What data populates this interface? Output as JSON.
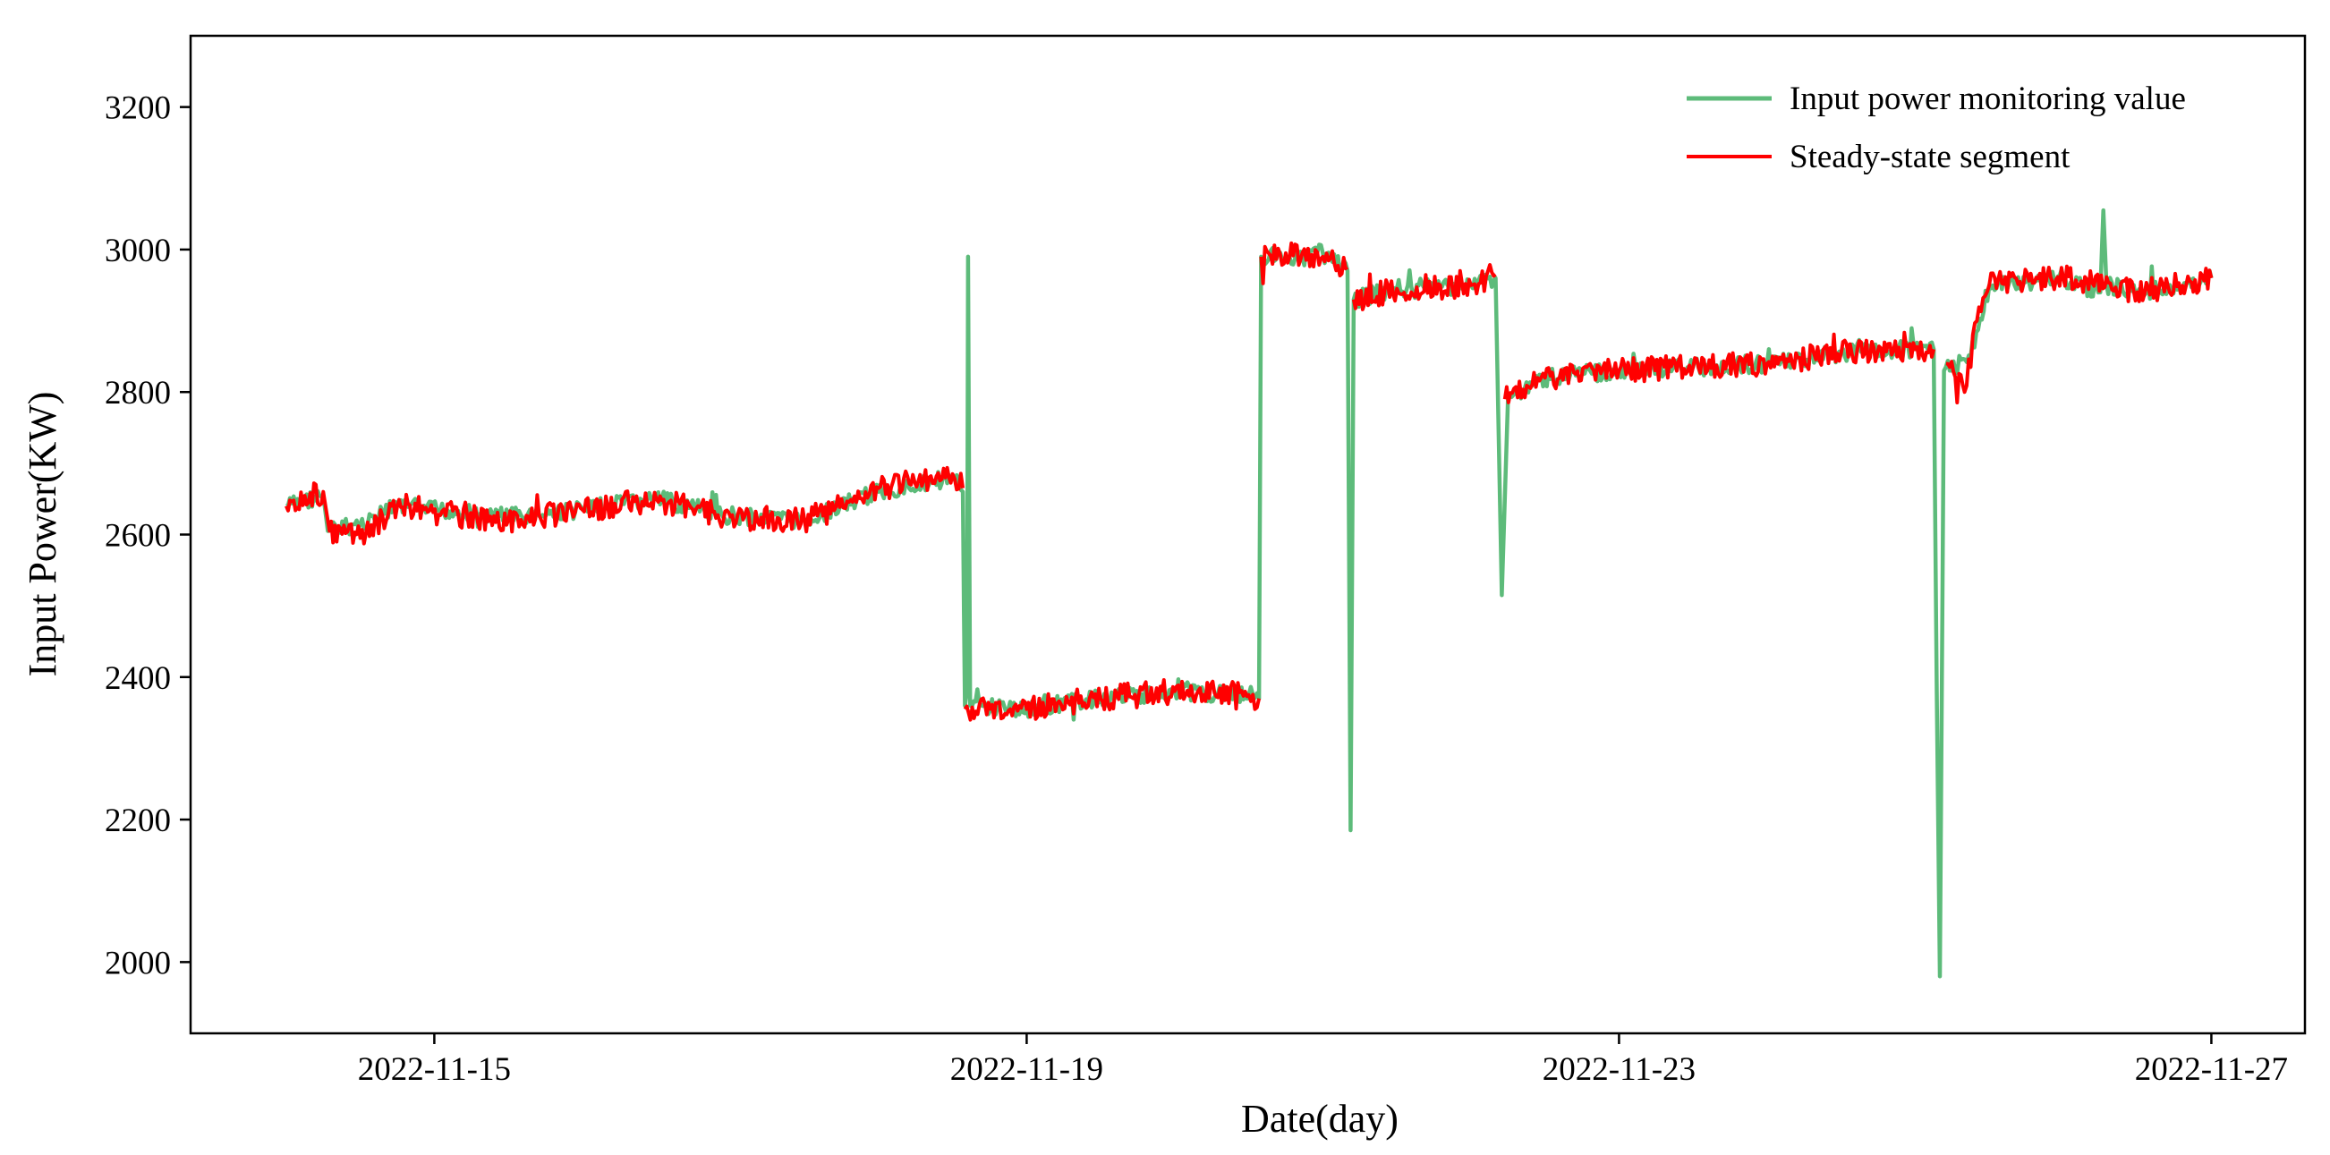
{
  "chart_data": {
    "type": "line",
    "xlabel": "Date(day)",
    "ylabel": "Input Power(KW)",
    "x_ticks": [
      "2022-11-15",
      "2022-11-19",
      "2022-11-23",
      "2022-11-27"
    ],
    "y_ticks": [
      2000,
      2200,
      2400,
      2600,
      2800,
      3000,
      3200
    ],
    "xlim": [
      "2022-11-13T08:30",
      "2022-11-27T15:10"
    ],
    "ylim": [
      1900,
      3300
    ],
    "grid": false,
    "legend": {
      "position": "top-right",
      "entries": [
        "Input power monitoring value",
        "Steady-state segment"
      ]
    },
    "series": [
      {
        "name": "Input power monitoring value",
        "color": "#5dbb7a",
        "points": [
          [
            "2022-11-14T00:00",
            2640
          ],
          [
            "2022-11-14T06:00",
            2655
          ],
          [
            "2022-11-14T06:45",
            2605
          ],
          [
            "2022-11-14T12:00",
            2615
          ],
          [
            "2022-11-14T18:00",
            2640
          ],
          [
            "2022-11-15T12:00",
            2625
          ],
          [
            "2022-11-16T00:00",
            2635
          ],
          [
            "2022-11-16T12:00",
            2650
          ],
          [
            "2022-11-17T00:00",
            2625
          ],
          [
            "2022-11-17T12:00",
            2620
          ],
          [
            "2022-11-17T18:00",
            2640
          ],
          [
            "2022-11-18T00:00",
            2660
          ],
          [
            "2022-11-18T12:00",
            2680
          ],
          [
            "2022-11-18T13:40",
            2660
          ],
          [
            "2022-11-18T13:50",
            2490
          ],
          [
            "2022-11-18T14:00",
            2360
          ],
          [
            "2022-11-18T14:20",
            2380
          ],
          [
            "2022-11-18T14:30",
            2990
          ],
          [
            "2022-11-18T14:50",
            2360
          ],
          [
            "2022-11-19T00:00",
            2355
          ],
          [
            "2022-11-19T12:00",
            2370
          ],
          [
            "2022-11-20T00:00",
            2380
          ],
          [
            "2022-11-20T12:00",
            2375
          ],
          [
            "2022-11-20T13:40",
            2370
          ],
          [
            "2022-11-20T14:00",
            2990
          ],
          [
            "2022-11-20T18:00",
            2990
          ],
          [
            "2022-11-21T00:00",
            2995
          ],
          [
            "2022-11-21T04:00",
            2970
          ],
          [
            "2022-11-21T04:30",
            2185
          ],
          [
            "2022-11-21T05:00",
            2930
          ],
          [
            "2022-11-21T12:00",
            2945
          ],
          [
            "2022-11-22T00:00",
            2950
          ],
          [
            "2022-11-22T04:00",
            2960
          ],
          [
            "2022-11-22T05:00",
            2515
          ],
          [
            "2022-11-22T06:00",
            2790
          ],
          [
            "2022-11-22T12:00",
            2820
          ],
          [
            "2022-11-23T00:00",
            2830
          ],
          [
            "2022-11-23T12:00",
            2835
          ],
          [
            "2022-11-24T00:00",
            2840
          ],
          [
            "2022-11-24T12:00",
            2855
          ],
          [
            "2022-11-25T00:00",
            2860
          ],
          [
            "2022-11-25T03:00",
            2860
          ],
          [
            "2022-11-25T03:30",
            2380
          ],
          [
            "2022-11-25T04:00",
            1980
          ],
          [
            "2022-11-25T04:40",
            2830
          ],
          [
            "2022-11-25T09:00",
            2850
          ],
          [
            "2022-11-25T12:00",
            2950
          ],
          [
            "2022-11-26T00:00",
            2960
          ],
          [
            "2022-11-26T06:00",
            2940
          ],
          [
            "2022-11-26T06:30",
            3055
          ],
          [
            "2022-11-26T07:00",
            2950
          ],
          [
            "2022-11-26T12:00",
            2940
          ],
          [
            "2022-11-27T00:00",
            2960
          ]
        ]
      },
      {
        "name": "Steady-state segment",
        "color": "#ff0000",
        "points": [
          [
            "2022-11-14T00:00",
            2640
          ],
          [
            "2022-11-14T06:00",
            2660
          ],
          [
            "2022-11-14T07:00",
            2605
          ],
          [
            "2022-11-14T12:00",
            2595
          ],
          [
            "2022-11-14T18:00",
            2640
          ],
          [
            "2022-11-15T12:00",
            2620
          ],
          [
            "2022-11-16T00:00",
            2635
          ],
          [
            "2022-11-16T12:00",
            2650
          ],
          [
            "2022-11-17T00:00",
            2625
          ],
          [
            "2022-11-17T12:00",
            2620
          ],
          [
            "2022-11-17T18:00",
            2650
          ],
          [
            "2022-11-18T00:00",
            2665
          ],
          [
            "2022-11-18T12:00",
            2685
          ],
          [
            "2022-11-18T13:40",
            2665
          ],
          null,
          [
            "2022-11-18T14:00",
            2355
          ],
          [
            "2022-11-19T00:00",
            2355
          ],
          [
            "2022-11-19T12:00",
            2370
          ],
          [
            "2022-11-20T00:00",
            2380
          ],
          [
            "2022-11-20T12:00",
            2375
          ],
          [
            "2022-11-20T13:40",
            2370
          ],
          null,
          [
            "2022-11-20T14:00",
            2990
          ],
          [
            "2022-11-20T18:00",
            2995
          ],
          [
            "2022-11-21T00:00",
            2990
          ],
          [
            "2022-11-21T04:00",
            2975
          ],
          null,
          [
            "2022-11-21T05:00",
            2930
          ],
          [
            "2022-11-21T12:00",
            2945
          ],
          [
            "2022-11-22T00:00",
            2950
          ],
          [
            "2022-11-22T04:00",
            2965
          ],
          null,
          [
            "2022-11-22T05:30",
            2790
          ],
          [
            "2022-11-22T12:00",
            2820
          ],
          [
            "2022-11-23T00:00",
            2830
          ],
          [
            "2022-11-23T12:00",
            2835
          ],
          [
            "2022-11-24T00:00",
            2840
          ],
          [
            "2022-11-24T12:00",
            2855
          ],
          [
            "2022-11-25T00:00",
            2860
          ],
          [
            "2022-11-25T03:00",
            2860
          ],
          null,
          [
            "2022-11-25T05:00",
            2840
          ],
          [
            "2022-11-25T08:00",
            2800
          ],
          [
            "2022-11-25T10:00",
            2900
          ],
          [
            "2022-11-25T12:00",
            2950
          ],
          [
            "2022-11-26T00:00",
            2960
          ],
          [
            "2022-11-26T12:00",
            2940
          ],
          [
            "2022-11-27T00:00",
            2960
          ]
        ]
      }
    ]
  }
}
